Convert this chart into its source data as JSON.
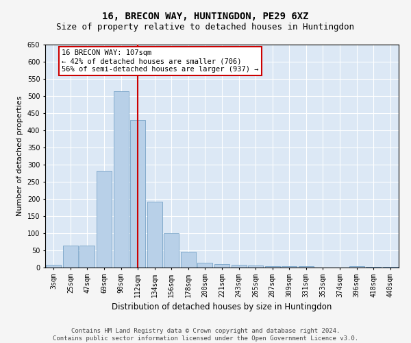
{
  "title": "16, BRECON WAY, HUNTINGDON, PE29 6XZ",
  "subtitle": "Size of property relative to detached houses in Huntingdon",
  "xlabel": "Distribution of detached houses by size in Huntingdon",
  "ylabel": "Number of detached properties",
  "bar_labels": [
    "3sqm",
    "25sqm",
    "47sqm",
    "69sqm",
    "90sqm",
    "112sqm",
    "134sqm",
    "156sqm",
    "178sqm",
    "200sqm",
    "221sqm",
    "243sqm",
    "265sqm",
    "287sqm",
    "309sqm",
    "331sqm",
    "353sqm",
    "374sqm",
    "396sqm",
    "418sqm",
    "440sqm"
  ],
  "bar_values": [
    9,
    64,
    64,
    283,
    514,
    430,
    192,
    101,
    46,
    15,
    10,
    9,
    6,
    5,
    5,
    4,
    1,
    1,
    5,
    3,
    2
  ],
  "bar_color": "#b8d0e8",
  "bar_edge_color": "#6898c0",
  "background_color": "#dce8f5",
  "grid_color": "#ffffff",
  "vline_x": 5,
  "vline_color": "#cc0000",
  "annotation_text": "16 BRECON WAY: 107sqm\n← 42% of detached houses are smaller (706)\n56% of semi-detached houses are larger (937) →",
  "annotation_box_facecolor": "#ffffff",
  "annotation_box_edgecolor": "#cc0000",
  "ylim": [
    0,
    650
  ],
  "yticks": [
    0,
    50,
    100,
    150,
    200,
    250,
    300,
    350,
    400,
    450,
    500,
    550,
    600,
    650
  ],
  "footer_line1": "Contains HM Land Registry data © Crown copyright and database right 2024.",
  "footer_line2": "Contains public sector information licensed under the Open Government Licence v3.0.",
  "title_fontsize": 10,
  "subtitle_fontsize": 9,
  "xlabel_fontsize": 8.5,
  "ylabel_fontsize": 8,
  "tick_fontsize": 7,
  "annotation_fontsize": 7.5,
  "footer_fontsize": 6.5
}
